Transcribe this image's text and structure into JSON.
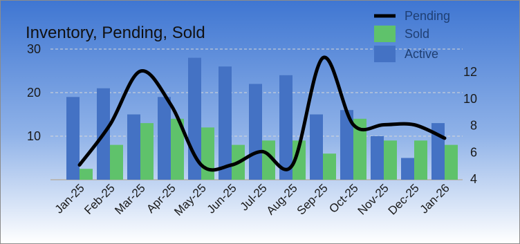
{
  "chart_data": {
    "type": "bar",
    "title": "Inventory, Pending, Sold",
    "categories": [
      "Jan-25",
      "Feb-25",
      "Mar-25",
      "Apr-25",
      "May-25",
      "Jun-25",
      "Jul-25",
      "Aug-25",
      "Sep-25",
      "Oct-25",
      "Nov-25",
      "Dec-25",
      "Jan-26"
    ],
    "series": [
      {
        "name": "Active",
        "kind": "bar",
        "axis": "left",
        "color": "#4472c4",
        "values": [
          19,
          21,
          15,
          19,
          28,
          26,
          22,
          24,
          15,
          16,
          10,
          5,
          13
        ]
      },
      {
        "name": "Sold",
        "kind": "bar",
        "axis": "left",
        "color": "#5fc26b",
        "values": [
          2.5,
          8,
          13,
          14,
          12,
          8,
          9,
          9,
          6,
          14,
          9,
          9,
          8
        ]
      },
      {
        "name": "Pending",
        "kind": "line",
        "axis": "right",
        "color": "#000000",
        "values": [
          5,
          8,
          12,
          9.5,
          5,
          5,
          6,
          5,
          13,
          8,
          8,
          8,
          7
        ]
      }
    ],
    "y_left": {
      "ticks": [
        10,
        20,
        30
      ],
      "ylim": [
        0,
        30
      ]
    },
    "y_right": {
      "ticks": [
        4,
        6,
        8,
        10,
        12
      ],
      "ylim": [
        4,
        13
      ]
    },
    "legend": {
      "position": "top-right",
      "order": [
        "Pending",
        "Sold",
        "Active"
      ]
    },
    "grid": true,
    "background": {
      "top": "#3f76d2",
      "bottom": "#ffffff"
    }
  }
}
